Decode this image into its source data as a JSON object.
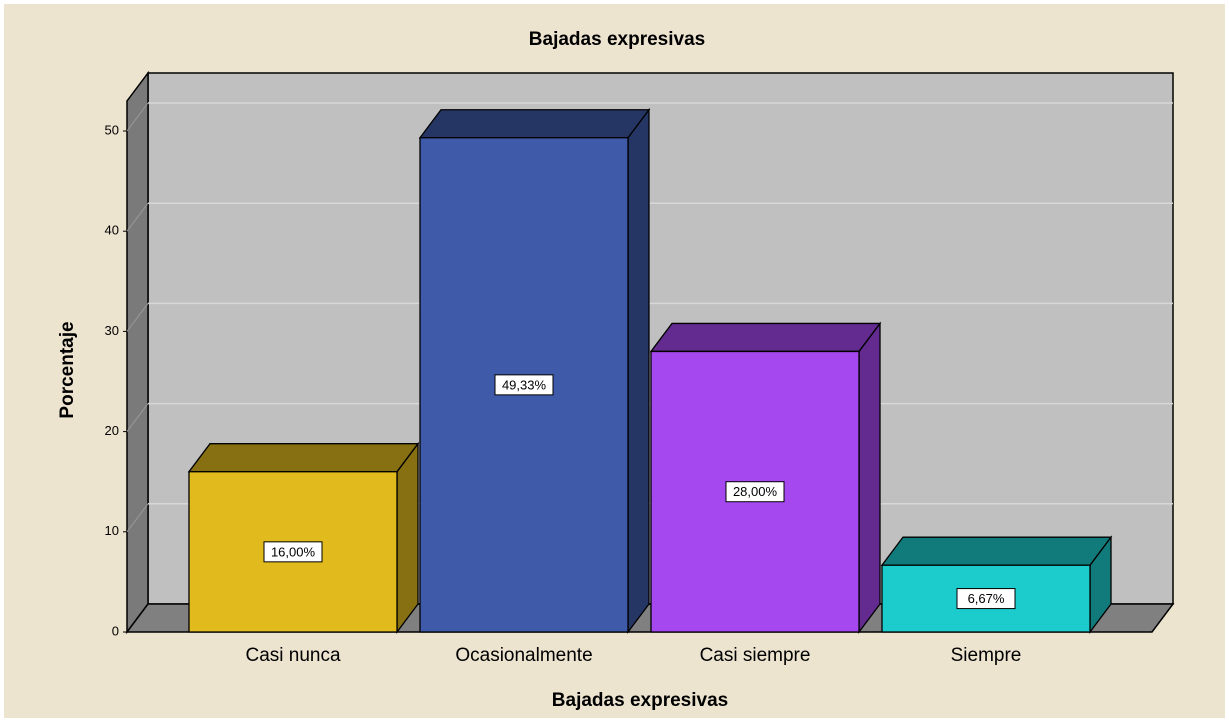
{
  "chart_data": {
    "type": "bar3d",
    "title": "Bajadas expresivas",
    "x_label": "Bajadas expresivas",
    "y_label": "Porcentaje",
    "categories": [
      "Casi nunca",
      "Ocasionalmente",
      "Casi siempre",
      "Siempre"
    ],
    "values": [
      16,
      49.33,
      28,
      6.67
    ],
    "value_labels": [
      "16,00%",
      "49,33%",
      "28,00%",
      "6,67%"
    ],
    "colors": [
      "#e1bb1e",
      "#3e5aa8",
      "#a548f0",
      "#1ccccc"
    ],
    "ylim": [
      0,
      53
    ],
    "yticks": [
      0,
      10,
      20,
      30,
      40,
      50
    ],
    "grid": true
  }
}
